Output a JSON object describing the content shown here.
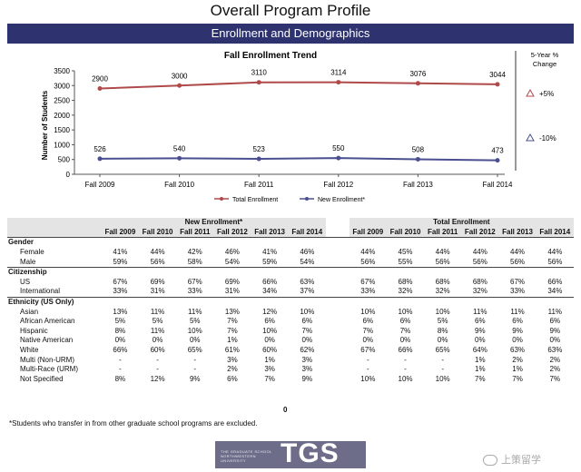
{
  "page": {
    "title": "Overall Program Profile",
    "banner": "Enrollment and Demographics"
  },
  "chart_data": {
    "type": "line",
    "title": "Fall Enrollment Trend",
    "ylabel": "Number of Students",
    "xlabel": "",
    "categories": [
      "Fall 2009",
      "Fall 2010",
      "Fall 2011",
      "Fall 2012",
      "Fall 2013",
      "Fall 2014"
    ],
    "yticks": [
      "0",
      "500",
      "1000",
      "1500",
      "2000",
      "2500",
      "3000",
      "3500"
    ],
    "ylim": [
      0,
      3500
    ],
    "series": [
      {
        "name": "Total Enrollment",
        "color": "#b04a4a",
        "values": [
          2900,
          3000,
          3110,
          3114,
          3076,
          3044
        ],
        "labels": [
          "2900",
          "3000",
          "3110",
          "3114",
          "3076",
          "3044"
        ]
      },
      {
        "name": "New Enrollment*",
        "color": "#4a4f8f",
        "values": [
          526,
          540,
          523,
          550,
          508,
          473
        ],
        "labels": [
          "526",
          "540",
          "523",
          "550",
          "508",
          "473"
        ]
      }
    ],
    "legend_position": "bottom",
    "change_header_line1": "5-Year %",
    "change_header_line2": "Change",
    "changes": [
      {
        "series": "Total Enrollment",
        "text": "+5%",
        "icon": "triangle-up-icon",
        "color": "#b04a4a"
      },
      {
        "series": "New Enrollment*",
        "text": "-10%",
        "icon": "triangle-up-icon",
        "color": "#4a4f8f"
      }
    ]
  },
  "table": {
    "group_new": "New Enrollment*",
    "group_total": "Total Enrollment",
    "years": [
      "Fall 2009",
      "Fall 2010",
      "Fall 2011",
      "Fall 2012",
      "Fall 2013",
      "Fall 2014"
    ],
    "sections": [
      {
        "title": "Gender",
        "rows": [
          {
            "label": "Female",
            "new": [
              "41%",
              "44%",
              "42%",
              "46%",
              "41%",
              "46%"
            ],
            "total": [
              "44%",
              "45%",
              "44%",
              "44%",
              "44%",
              "44%"
            ]
          },
          {
            "label": "Male",
            "new": [
              "59%",
              "56%",
              "58%",
              "54%",
              "59%",
              "54%"
            ],
            "total": [
              "56%",
              "55%",
              "56%",
              "56%",
              "56%",
              "56%"
            ]
          }
        ]
      },
      {
        "title": "Citizenship",
        "rows": [
          {
            "label": "US",
            "new": [
              "67%",
              "69%",
              "67%",
              "69%",
              "66%",
              "63%"
            ],
            "total": [
              "67%",
              "68%",
              "68%",
              "68%",
              "67%",
              "66%"
            ]
          },
          {
            "label": "International",
            "new": [
              "33%",
              "31%",
              "33%",
              "31%",
              "34%",
              "37%"
            ],
            "total": [
              "33%",
              "32%",
              "32%",
              "32%",
              "33%",
              "34%"
            ]
          }
        ]
      },
      {
        "title": "Ethnicity (US Only)",
        "rows": [
          {
            "label": "Asian",
            "new": [
              "13%",
              "11%",
              "11%",
              "13%",
              "12%",
              "10%"
            ],
            "total": [
              "10%",
              "10%",
              "10%",
              "11%",
              "11%",
              "11%"
            ]
          },
          {
            "label": "African American",
            "new": [
              "5%",
              "5%",
              "5%",
              "7%",
              "6%",
              "6%"
            ],
            "total": [
              "6%",
              "6%",
              "5%",
              "6%",
              "6%",
              "6%"
            ]
          },
          {
            "label": "Hispanic",
            "new": [
              "8%",
              "11%",
              "10%",
              "7%",
              "10%",
              "7%"
            ],
            "total": [
              "7%",
              "7%",
              "8%",
              "9%",
              "9%",
              "9%"
            ]
          },
          {
            "label": "Native American",
            "new": [
              "0%",
              "0%",
              "0%",
              "1%",
              "0%",
              "0%"
            ],
            "total": [
              "0%",
              "0%",
              "0%",
              "0%",
              "0%",
              "0%"
            ]
          },
          {
            "label": "White",
            "new": [
              "66%",
              "60%",
              "65%",
              "61%",
              "60%",
              "62%"
            ],
            "total": [
              "67%",
              "66%",
              "65%",
              "64%",
              "63%",
              "63%"
            ]
          },
          {
            "label": "Multi (Non-URM)",
            "new": [
              "-",
              "-",
              "-",
              "3%",
              "1%",
              "3%"
            ],
            "total": [
              "-",
              "-",
              "-",
              "1%",
              "2%",
              "2%"
            ]
          },
          {
            "label": "Multi-Race (URM)",
            "new": [
              "-",
              "-",
              "-",
              "2%",
              "3%",
              "3%"
            ],
            "total": [
              "-",
              "-",
              "-",
              "1%",
              "1%",
              "2%"
            ]
          },
          {
            "label": "Not Specified",
            "new": [
              "8%",
              "12%",
              "9%",
              "6%",
              "7%",
              "9%"
            ],
            "total": [
              "10%",
              "10%",
              "10%",
              "7%",
              "7%",
              "7%"
            ]
          }
        ]
      }
    ],
    "zero_note": "0"
  },
  "footnote": "*Students who transfer in from other graduate school programs are excluded.",
  "logo": {
    "small_text": "THE GRADUATE SCHOOL NORTHWESTERN UNIVERSITY",
    "big_text": "TGS"
  },
  "watermark": "上策留学"
}
